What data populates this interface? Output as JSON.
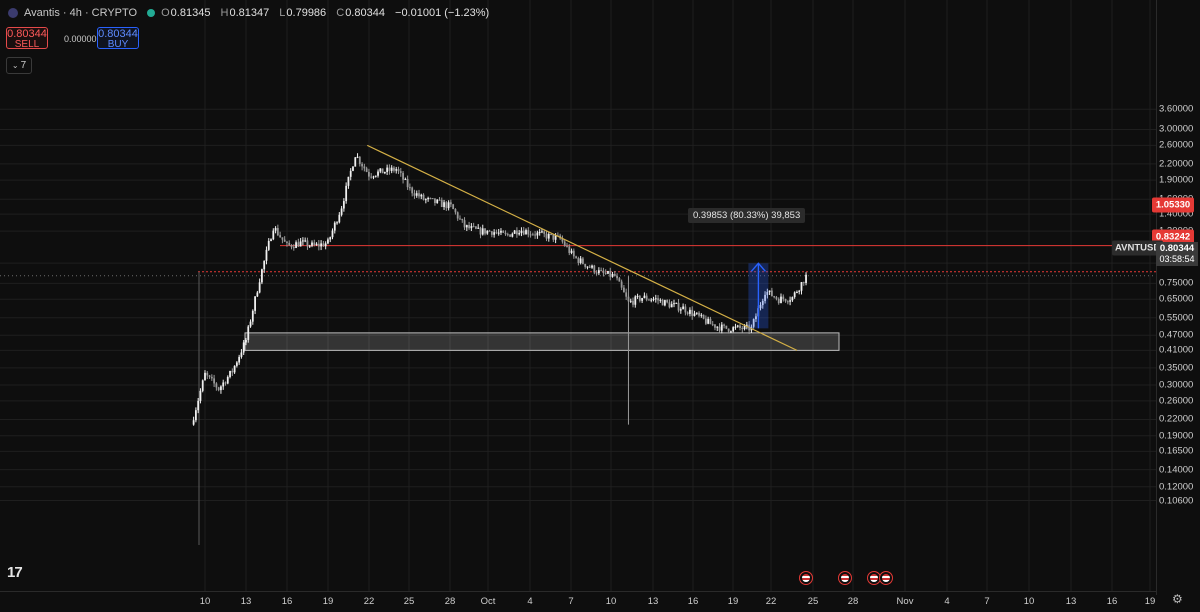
{
  "header": {
    "symbol": "Avantis · 4h · CRYPTO",
    "o_label": "O",
    "o_value": "0.81345",
    "h_label": "H",
    "h_value": "0.81347",
    "l_label": "L",
    "l_value": "0.79986",
    "c_label": "C",
    "c_value": "0.80344",
    "change": "−0.01001 (−1.23%)"
  },
  "trade": {
    "sell_price": "0.80344",
    "sell_label": "SELL",
    "spread": "0.00000",
    "buy_price": "0.80344",
    "buy_label": "BUY"
  },
  "indicators": {
    "count": "7"
  },
  "price_axis": [
    "3.60000",
    "3.00000",
    "2.60000",
    "2.20000",
    "1.90000",
    "1.60000",
    "1.40000",
    "1.20000",
    "0.90000",
    "0.75000",
    "0.65000",
    "0.55000",
    "0.47000",
    "0.41000",
    "0.35000",
    "0.30000",
    "0.26000",
    "0.22000",
    "0.19000",
    "0.16500",
    "0.14000",
    "0.12000",
    "0.10600"
  ],
  "time_axis": [
    "10",
    "13",
    "16",
    "19",
    "22",
    "25",
    "28",
    "Oct",
    "4",
    "7",
    "10",
    "13",
    "16",
    "19",
    "22",
    "25",
    "28",
    "Nov",
    "4",
    "7",
    "10",
    "13",
    "16",
    "19"
  ],
  "tags": {
    "resistance": "1.05330",
    "high": "0.83242",
    "symbol": "AVNTUSD",
    "current_price": "0.80344",
    "countdown": "03:58:54"
  },
  "measure_label": "0.39853 (80.33%) 39,853",
  "colors": {
    "up": "#f0f0f0",
    "down": "#9a9a9a",
    "trendline": "#d4b046",
    "resistance": "#e53935",
    "measure": "#2962ff",
    "zone": "#ffffff"
  },
  "chart_data": {
    "type": "candlestick",
    "title": "Avantis · 4h · CRYPTO",
    "symbol": "AVNTUSD",
    "timeframe": "4h",
    "y_scale": "log",
    "ylim": [
      0.1,
      3.8
    ],
    "x_ticks": [
      "10",
      "13",
      "16",
      "19",
      "22",
      "25",
      "28",
      "Oct",
      "4",
      "7",
      "10",
      "13",
      "16",
      "19",
      "22",
      "25",
      "28",
      "Nov",
      "4",
      "7",
      "10",
      "13",
      "16",
      "19"
    ],
    "close_path": [
      [
        "Sep 9",
        0.21
      ],
      [
        "Sep 10",
        0.33
      ],
      [
        "Sep 11",
        0.29
      ],
      [
        "Sep 12",
        0.34
      ],
      [
        "Sep 13",
        0.45
      ],
      [
        "Sep 14",
        0.78
      ],
      [
        "Sep 15",
        1.25
      ],
      [
        "Sep 16",
        1.05
      ],
      [
        "Sep 17",
        1.08
      ],
      [
        "Sep 18",
        1.05
      ],
      [
        "Sep 19",
        1.08
      ],
      [
        "Sep 20",
        1.5
      ],
      [
        "Sep 21",
        2.4
      ],
      [
        "Sep 22",
        2.0
      ],
      [
        "Sep 23",
        2.05
      ],
      [
        "Sep 24",
        2.1
      ],
      [
        "Sep 25",
        1.75
      ],
      [
        "Sep 26",
        1.6
      ],
      [
        "Sep 27",
        1.55
      ],
      [
        "Sep 28",
        1.5
      ],
      [
        "Sep 29",
        1.25
      ],
      [
        "Sep 30",
        1.2
      ],
      [
        "Oct 1",
        1.2
      ],
      [
        "Oct 2",
        1.15
      ],
      [
        "Oct 3",
        1.22
      ],
      [
        "Oct 4",
        1.18
      ],
      [
        "Oct 5",
        1.15
      ],
      [
        "Oct 6",
        1.12
      ],
      [
        "Oct 7",
        0.95
      ],
      [
        "Oct 8",
        0.88
      ],
      [
        "Oct 9",
        0.82
      ],
      [
        "Oct 10",
        0.8
      ],
      [
        "Oct 11",
        0.63
      ],
      [
        "Oct 12",
        0.66
      ],
      [
        "Oct 13",
        0.65
      ],
      [
        "Oct 14",
        0.62
      ],
      [
        "Oct 15",
        0.6
      ],
      [
        "Oct 16",
        0.56
      ],
      [
        "Oct 17",
        0.52
      ],
      [
        "Oct 18",
        0.5
      ],
      [
        "Oct 19",
        0.5
      ],
      [
        "Oct 20",
        0.5
      ],
      [
        "Oct 21",
        0.7
      ],
      [
        "Oct 22",
        0.65
      ],
      [
        "Oct 23",
        0.66
      ],
      [
        "Oct 24",
        0.8
      ]
    ],
    "spike_low": {
      "date": "Oct 11",
      "value": 0.21
    },
    "resistance_level": 1.0533,
    "high_level": 0.83242,
    "support_zone": [
      0.41,
      0.48
    ],
    "trendline": [
      [
        "Sep 21",
        2.6
      ],
      [
        "Oct 24",
        0.41
      ]
    ],
    "measure": {
      "date": "Oct 20",
      "from": 0.5,
      "to": 0.8985,
      "label": "0.39853 (80.33%) 39,853"
    },
    "current_price": 0.80344
  }
}
